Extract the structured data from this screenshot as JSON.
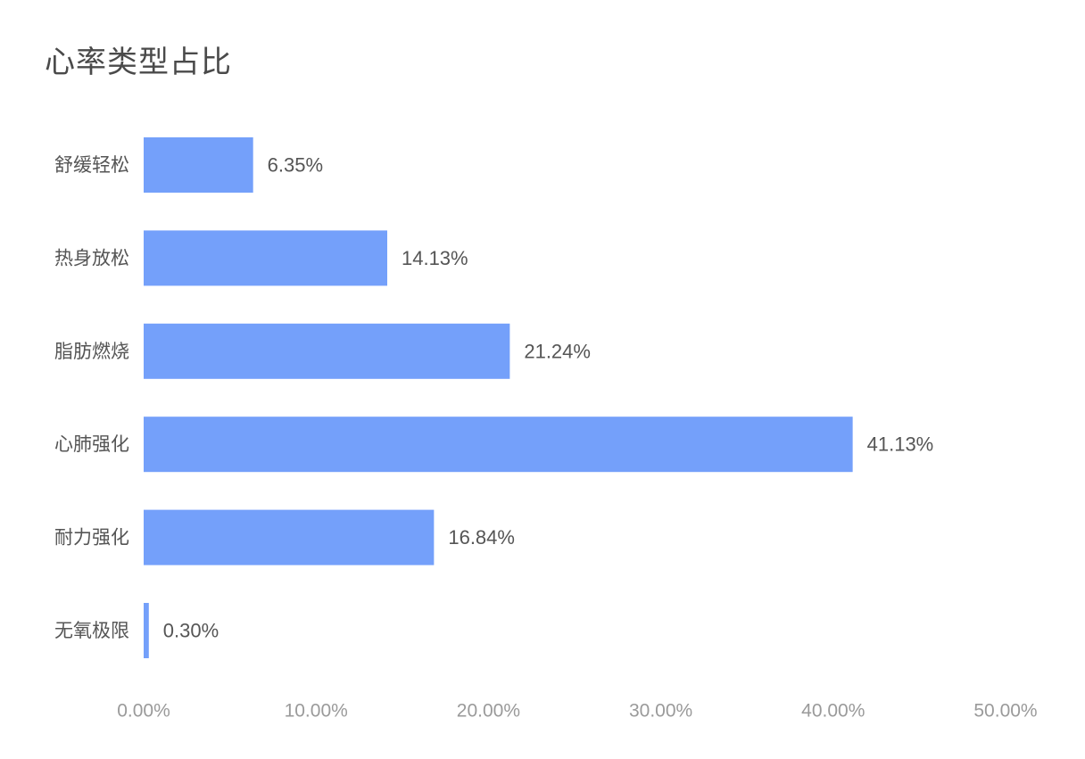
{
  "chart_data": {
    "type": "bar",
    "orientation": "horizontal",
    "title": "心率类型占比",
    "categories": [
      "舒缓轻松",
      "热身放松",
      "脂肪燃烧",
      "心肺强化",
      "耐力强化",
      "无氧极限"
    ],
    "values": [
      6.35,
      14.13,
      21.24,
      41.13,
      16.84,
      0.3
    ],
    "value_labels": [
      "6.35%",
      "14.13%",
      "21.24%",
      "41.13%",
      "16.84%",
      "0.30%"
    ],
    "x_ticks": [
      "0.00%",
      "10.00%",
      "20.00%",
      "30.00%",
      "40.00%",
      "50.00%"
    ],
    "xlim": [
      0,
      50
    ],
    "xlabel": "",
    "ylabel": "",
    "grid": false,
    "legend": "none",
    "bar_color": "#74a0fa"
  }
}
